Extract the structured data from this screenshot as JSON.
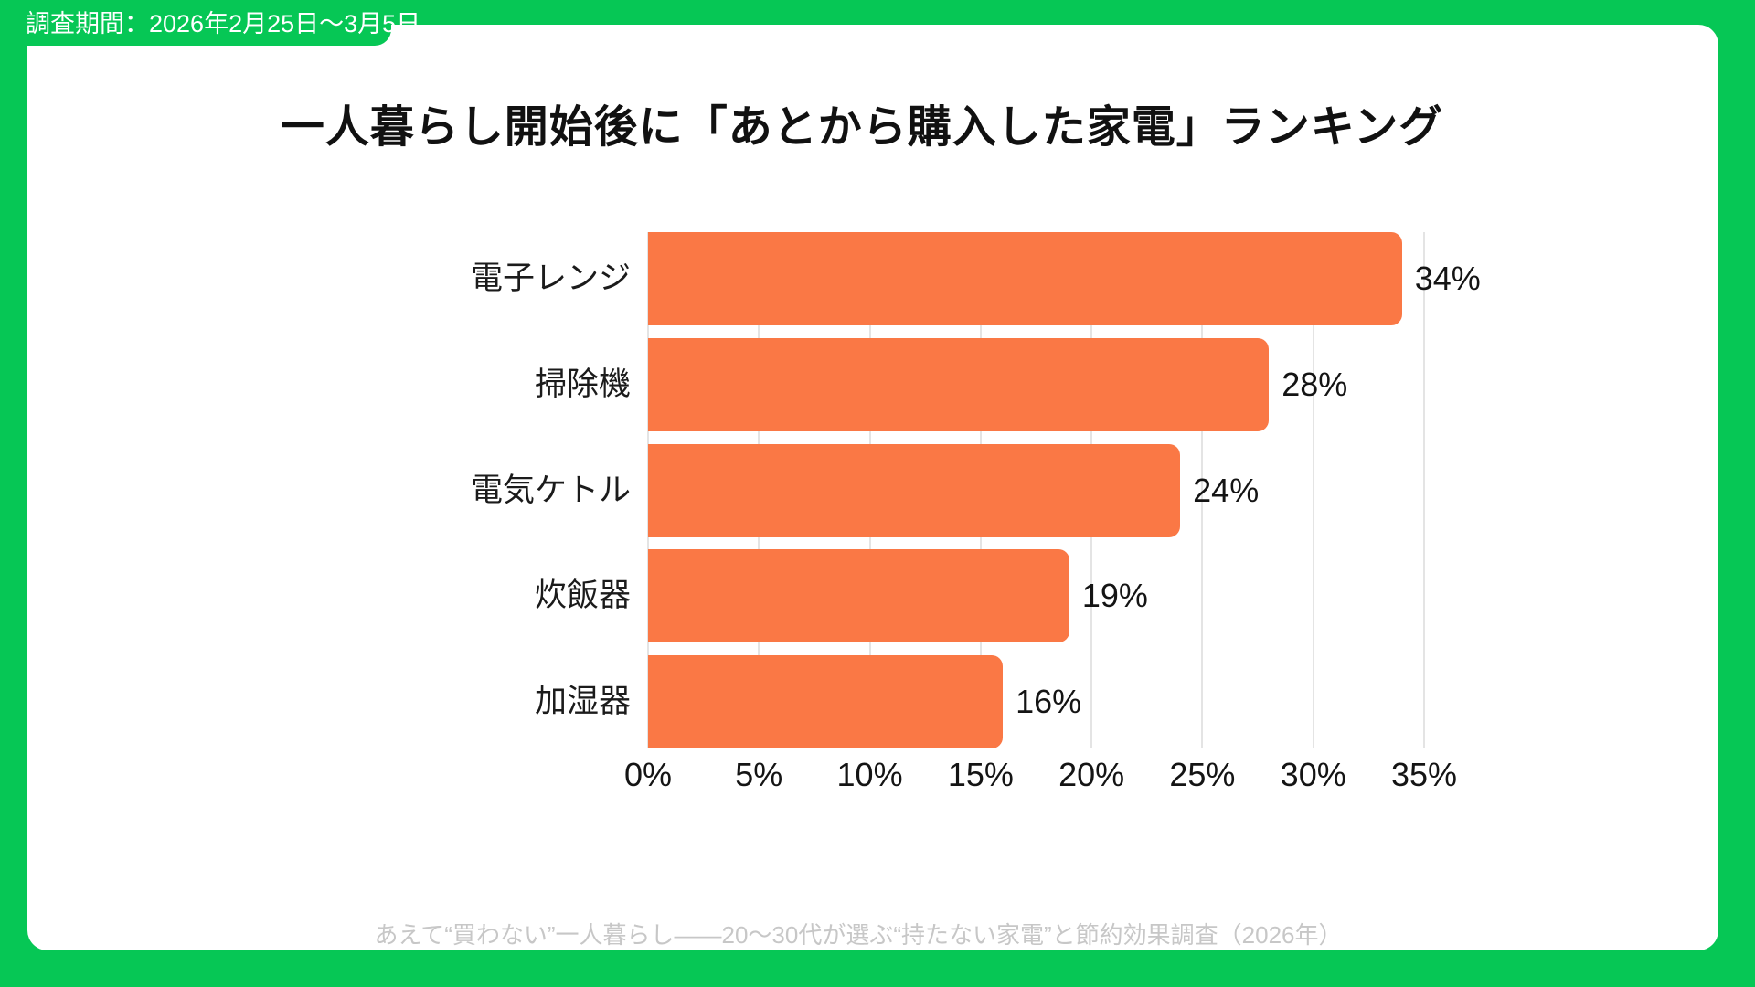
{
  "badge": {
    "text": "調査期間：2026年2月25日〜3月5日"
  },
  "title": {
    "text": "一人暮らし開始後に「あとから購入した家電」ランキング"
  },
  "footer": {
    "text": "あえて“買わない”一人暮らし――20〜30代が選ぶ“持たない家電”と節約効果調査（2026年）"
  },
  "colors": {
    "frame_green": "#06C755",
    "card_white": "#ffffff",
    "bar_orange": "#FA7845",
    "gridline_gray": "#e4e4e4",
    "footer_gray": "#c7c7c7",
    "text_dark": "#141414"
  },
  "chart_data": {
    "type": "bar",
    "orientation": "horizontal",
    "title": "一人暮らし開始後に「あとから購入した家電」ランキング",
    "categories": [
      "電子レンジ",
      "掃除機",
      "電気ケトル",
      "炊飯器",
      "加湿器"
    ],
    "values": [
      34,
      28,
      24,
      19,
      16
    ],
    "value_labels": [
      "34%",
      "28%",
      "24%",
      "19%",
      "16%"
    ],
    "x_ticks": [
      0,
      5,
      10,
      15,
      20,
      25,
      30,
      35
    ],
    "x_tick_labels": [
      "0%",
      "5%",
      "10%",
      "15%",
      "20%",
      "25%",
      "30%",
      "35%"
    ],
    "xlim": [
      0,
      35
    ],
    "grid": true,
    "legend": false
  }
}
